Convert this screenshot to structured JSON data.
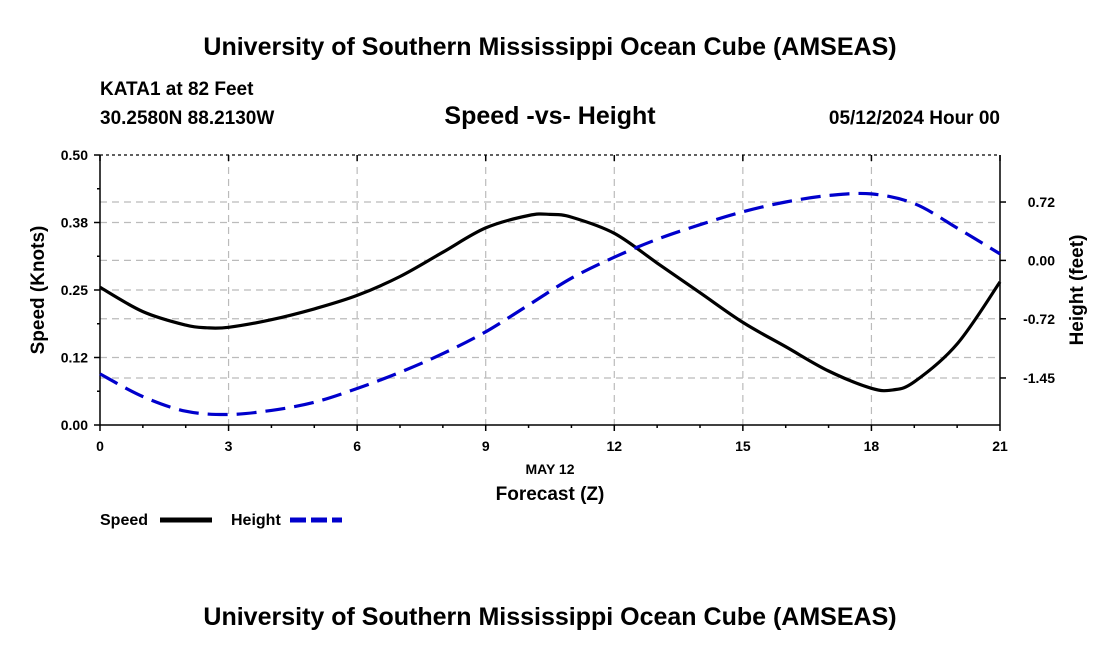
{
  "header": {
    "title": "University of Southern Mississippi Ocean Cube (AMSEAS)",
    "station": "KATA1 at 82 Feet",
    "coords": "30.2580N  88.2130W",
    "chart_title": "Speed -vs- Height",
    "date": "05/12/2024 Hour 00",
    "footer_title": "University of Southern Mississippi Ocean Cube (AMSEAS)"
  },
  "chart_data": {
    "type": "line",
    "title": "Speed -vs- Height",
    "xlabel": "Forecast (Z)",
    "xlabel_date": "MAY 12",
    "ylabel": "Speed (Knots)",
    "y2label": "Height (feet)",
    "xlim": [
      0,
      21
    ],
    "xticks": [
      0,
      3,
      6,
      9,
      12,
      15,
      18,
      21
    ],
    "xtick_labels": [
      "0",
      "3",
      "6",
      "9",
      "12",
      "15",
      "18",
      "21"
    ],
    "ylim": [
      0,
      0.5
    ],
    "yticks": [
      0,
      0.125,
      0.25,
      0.375,
      0.5
    ],
    "ytick_labels": [
      "0.00",
      "0.12",
      "0.25",
      "0.38",
      "0.50"
    ],
    "y2lim": [
      -2.03,
      1.3
    ],
    "y2ticks": [
      -1.45,
      -0.72,
      0,
      0.72
    ],
    "y2tick_labels": [
      "-1.45",
      "-0.72",
      "0.00",
      "0.72"
    ],
    "grid": true,
    "legend_position": "bottom-left",
    "colors": {
      "speed": "#000000",
      "height": "#0000cc"
    },
    "series": [
      {
        "name": "Speed",
        "axis": "left",
        "style": "solid",
        "x": [
          0,
          1,
          2,
          2.5,
          3,
          4,
          5,
          6,
          7,
          8,
          9,
          10,
          10.5,
          11,
          12,
          13,
          14,
          15,
          16,
          17,
          18,
          18.5,
          19,
          20,
          21
        ],
        "values": [
          0.255,
          0.21,
          0.185,
          0.18,
          0.181,
          0.195,
          0.215,
          0.24,
          0.275,
          0.32,
          0.365,
          0.388,
          0.39,
          0.385,
          0.355,
          0.3,
          0.245,
          0.19,
          0.145,
          0.1,
          0.068,
          0.065,
          0.08,
          0.15,
          0.265
        ]
      },
      {
        "name": "Height",
        "axis": "right",
        "style": "dashed",
        "x": [
          0,
          1,
          2,
          3,
          4,
          5,
          6,
          7,
          8,
          9,
          10,
          11,
          12,
          13,
          14,
          15,
          16,
          17,
          18,
          19,
          20,
          21
        ],
        "values": [
          -1.4,
          -1.68,
          -1.86,
          -1.9,
          -1.85,
          -1.75,
          -1.58,
          -1.38,
          -1.15,
          -0.88,
          -0.55,
          -0.22,
          0.04,
          0.26,
          0.44,
          0.6,
          0.72,
          0.8,
          0.82,
          0.7,
          0.4,
          0.08
        ]
      }
    ]
  },
  "legend": {
    "items": [
      {
        "label": "Speed",
        "color": "#000000"
      },
      {
        "label": "Height",
        "color": "#0000cc"
      }
    ]
  }
}
